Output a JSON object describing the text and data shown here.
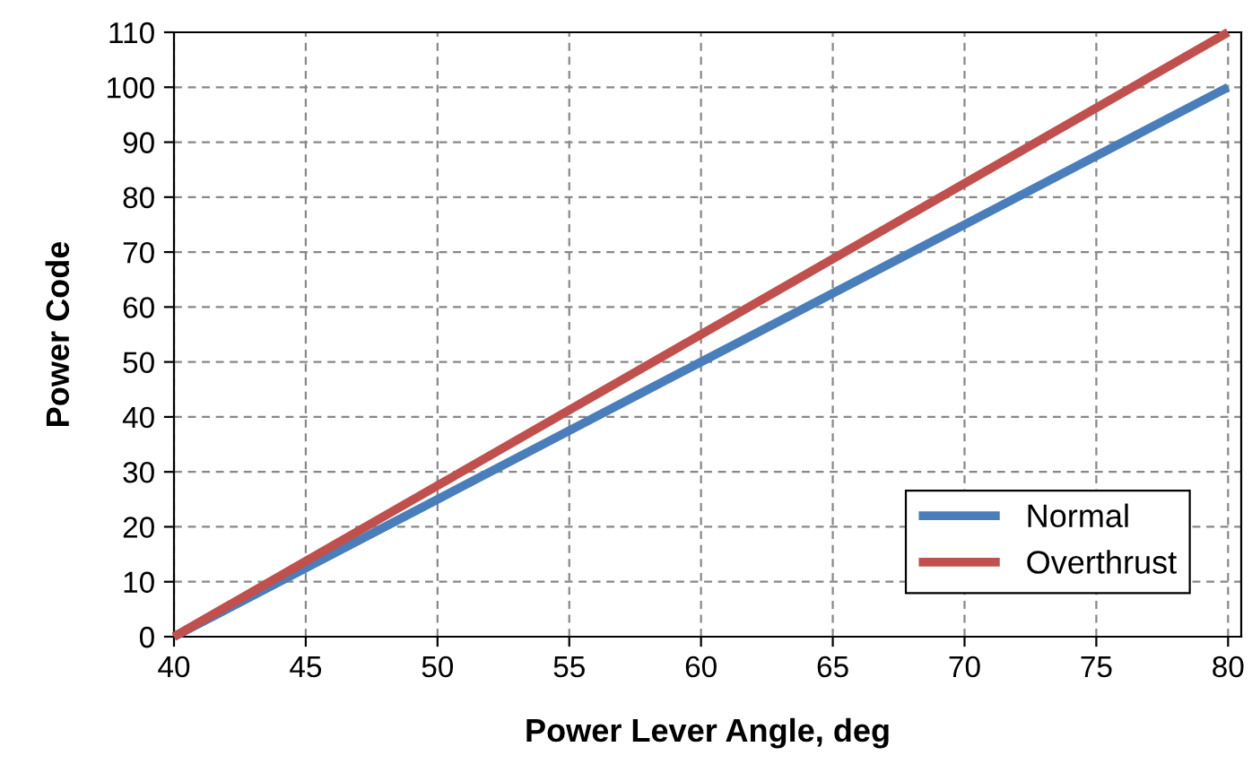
{
  "chart_data": {
    "type": "line",
    "xlabel": "Power Lever Angle, deg",
    "ylabel": "Power Code",
    "xlim": [
      40,
      80.5
    ],
    "ylim": [
      0,
      110
    ],
    "xticks": [
      40,
      45,
      50,
      55,
      60,
      65,
      70,
      75,
      80
    ],
    "yticks": [
      0,
      10,
      20,
      30,
      40,
      50,
      60,
      70,
      80,
      90,
      100,
      110
    ],
    "grid": true,
    "legend": "bottom right",
    "line_style": "solid",
    "marker": "none",
    "series": [
      {
        "name": "Normal",
        "color": "#4a7ebb",
        "x": [
          40,
          50,
          60,
          70,
          80
        ],
        "values": [
          0,
          25,
          50,
          75,
          100
        ]
      },
      {
        "name": "Overthrust",
        "color": "#c0504d",
        "x": [
          40,
          50,
          60,
          70,
          80
        ],
        "values": [
          0,
          27.5,
          55,
          82.5,
          110
        ]
      }
    ]
  }
}
